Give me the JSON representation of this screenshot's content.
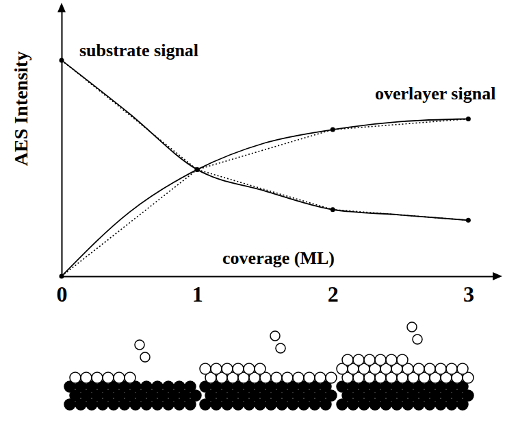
{
  "chart_data": {
    "type": "line",
    "x_label": "coverage (ML)",
    "y_label": "AES Intensity",
    "xlim": [
      0,
      3.2
    ],
    "xticks": [
      0,
      1,
      2,
      3
    ],
    "ylim": [
      0,
      100
    ],
    "tick_labels": "x",
    "series": [
      {
        "name": "substrate signal",
        "color": "#000000",
        "line_style": "solid",
        "x": [
          0,
          0.5,
          1,
          1.5,
          2,
          2.5,
          3
        ],
        "values": [
          81,
          61,
          40,
          32,
          25,
          23,
          21
        ]
      },
      {
        "color": "#000000",
        "line_style": "dotted",
        "marker": "circle",
        "x": [
          0,
          1,
          2,
          3
        ],
        "values": [
          81,
          40,
          25,
          21
        ]
      },
      {
        "name": "overlayer signal",
        "color": "#000000",
        "line_style": "solid",
        "x": [
          0,
          0.5,
          1,
          1.5,
          2,
          2.5,
          3
        ],
        "values": [
          0,
          24,
          40,
          50,
          55,
          58,
          59
        ]
      },
      {
        "color": "#000000",
        "line_style": "dotted",
        "marker": "circle",
        "x": [
          0,
          1,
          2,
          3
        ],
        "values": [
          0,
          40,
          55,
          59
        ]
      }
    ]
  }
}
